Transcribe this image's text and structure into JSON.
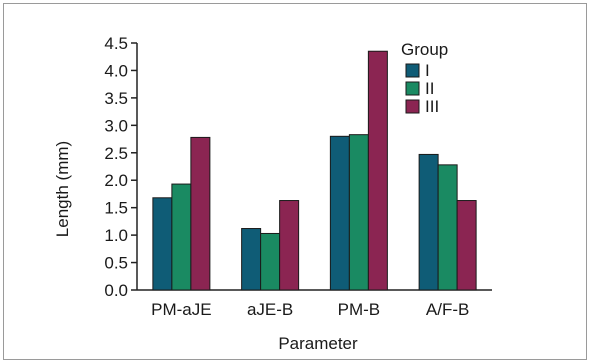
{
  "chart_data": {
    "type": "bar",
    "xlabel": "Parameter",
    "ylabel": "Length (mm)",
    "categories": [
      "PM-aJE",
      "aJE-B",
      "PM-B",
      "A/F-B"
    ],
    "series": [
      {
        "name": "I",
        "values": [
          1.68,
          1.12,
          2.8,
          2.47
        ],
        "color": "#0f5c76"
      },
      {
        "name": "II",
        "values": [
          1.93,
          1.03,
          2.83,
          2.28
        ],
        "color": "#1a8a62"
      },
      {
        "name": "III",
        "values": [
          2.78,
          1.63,
          4.35,
          1.63
        ],
        "color": "#8b2552"
      }
    ],
    "ylim": [
      0,
      4.5
    ],
    "yticks": [
      "0.0",
      "0.5",
      "1.0",
      "1.5",
      "2.0",
      "2.5",
      "3.0",
      "3.5",
      "4.0",
      "4.5"
    ],
    "legend": {
      "title": "Group",
      "position": "top-right"
    },
    "grid": false
  }
}
